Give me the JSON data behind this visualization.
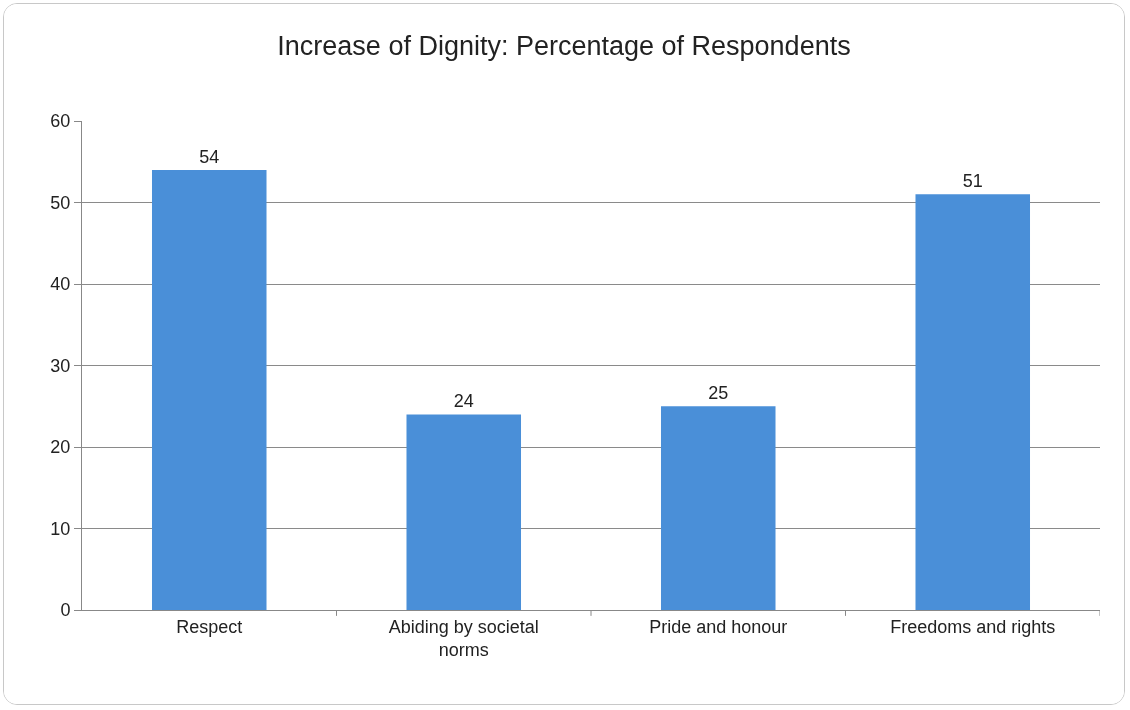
{
  "chart_data": {
    "type": "bar",
    "title": "Increase of Dignity: Percentage of Respondents",
    "categories": [
      "Respect",
      "Abiding by societal norms",
      "Pride and honour",
      "Freedoms and rights"
    ],
    "values": [
      54,
      24,
      25,
      51
    ],
    "color": "#4a8fd8",
    "ylim": [
      0,
      60
    ],
    "yticks": [
      0,
      10,
      20,
      30,
      40,
      50,
      60
    ],
    "grid": "y",
    "data_labels": true
  }
}
